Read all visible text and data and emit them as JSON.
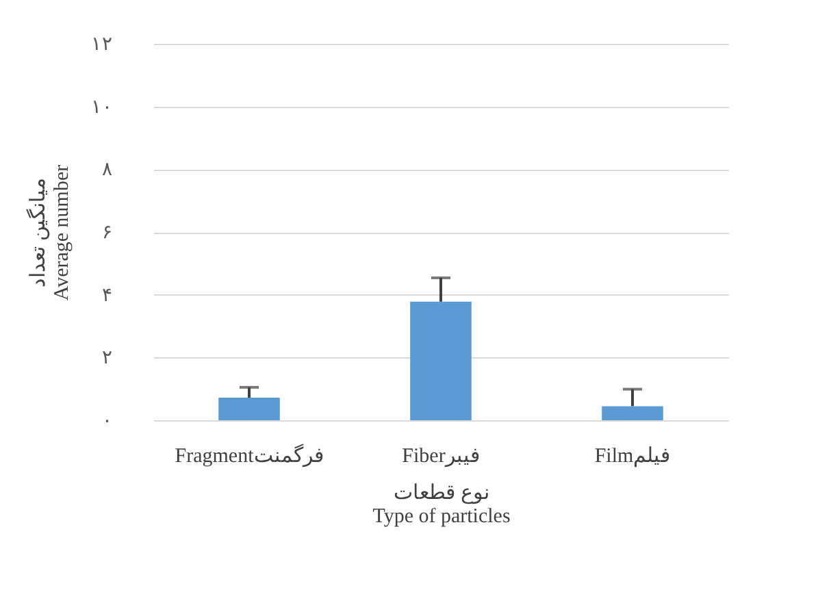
{
  "chart_data": {
    "type": "bar",
    "categories": [
      "Fragmentفرگمنت",
      "Fiberفیبر",
      "Filmفیلم"
    ],
    "series": [
      {
        "color": "#5b9bd5",
        "values": [
          0.72,
          3.78,
          0.45
        ],
        "errors": [
          [
            0.72,
            1.05
          ],
          [
            3.78,
            4.54
          ],
          [
            0.45,
            0.99
          ]
        ]
      }
    ],
    "xlabel": "نوع قطعات\nType of particles",
    "ylabel": "میانگین تعداد\nAverage number",
    "ylim": [
      0,
      12
    ],
    "yticks": [
      {
        "value": 0,
        "label": "۰"
      },
      {
        "value": 2,
        "label": "۲"
      },
      {
        "value": 4,
        "label": "۴"
      },
      {
        "value": 6,
        "label": "۶"
      },
      {
        "value": 8,
        "label": "۸"
      },
      {
        "value": 10,
        "label": "۱۰"
      },
      {
        "value": 12,
        "label": "۱۲"
      }
    ],
    "grid": "y"
  }
}
